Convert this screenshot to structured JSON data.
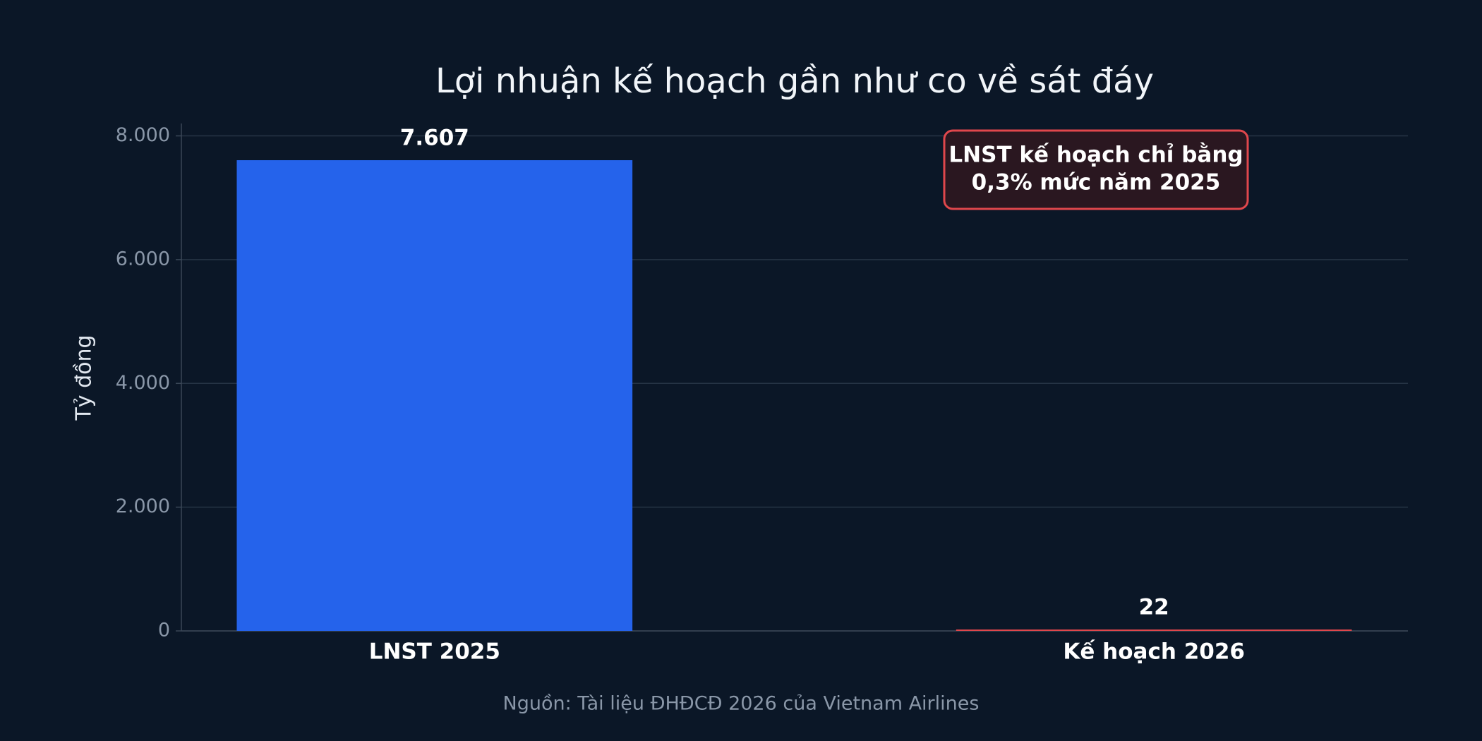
{
  "chart_data": {
    "type": "bar",
    "title": "Lợi nhuận kế hoạch gần như co về sát đáy",
    "y_label": "Tỷ đồng",
    "categories": [
      "LNST 2025",
      "Kế hoạch 2026"
    ],
    "values": [
      7607,
      22
    ],
    "value_labels": [
      "7.607",
      "22"
    ],
    "colors": [
      "#2563eb",
      "#e0474c"
    ],
    "ylim": [
      0,
      8200
    ],
    "yticks": [
      0,
      {
        "value": 2000,
        "label": "2.000"
      },
      {
        "value": 4000,
        "label": "4.000"
      },
      {
        "value": 6000,
        "label": "6.000"
      },
      {
        "value": 8000,
        "label": "8.000"
      }
    ],
    "grid": true,
    "annotation": [
      "LNST kế hoạch chỉ bằng",
      "0,3% mức năm 2025"
    ],
    "source": "Nguồn: Tài liệu ĐHĐCĐ 2026 của Vietnam Airlines"
  }
}
